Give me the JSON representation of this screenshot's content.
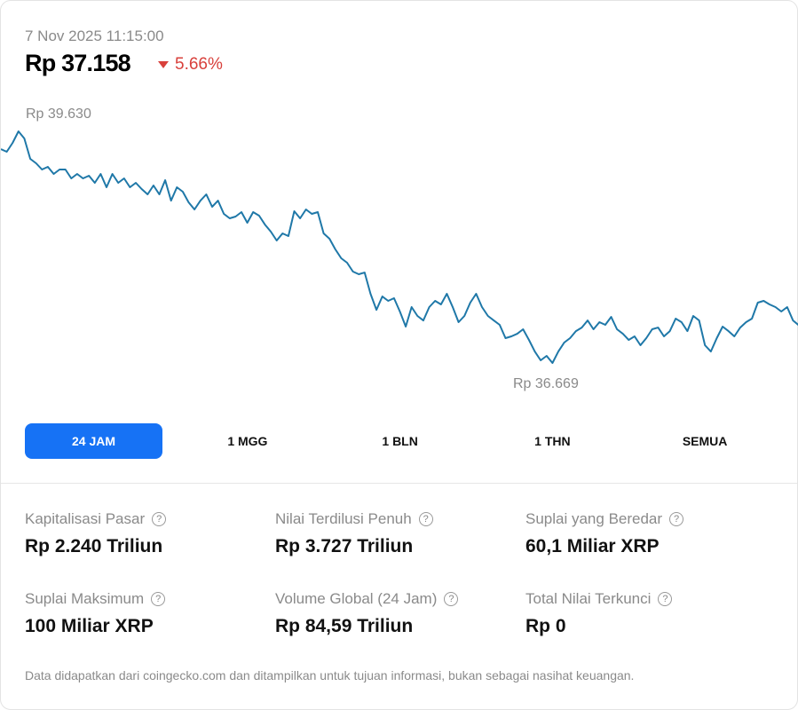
{
  "header": {
    "timestamp": "7 Nov 2025 11:15:00",
    "price": "Rp 37.158",
    "change": "5.66%",
    "change_direction": "down",
    "down_color": "#d8403b"
  },
  "chart_data": {
    "type": "line",
    "title": "",
    "xlabel": "",
    "ylabel": "",
    "line_color": "#1f78a8",
    "max_label": "Rp 39.630",
    "min_label": "Rp 36.669",
    "ylim": [
      36669,
      39630
    ],
    "values": [
      39394,
      39360,
      39472,
      39619,
      39529,
      39270,
      39213,
      39135,
      39168,
      39078,
      39135,
      39135,
      39022,
      39078,
      39022,
      39056,
      38966,
      39078,
      38909,
      39078,
      38966,
      39022,
      38909,
      38966,
      38887,
      38819,
      38932,
      38819,
      38999,
      38740,
      38909,
      38853,
      38718,
      38628,
      38740,
      38819,
      38662,
      38740,
      38572,
      38515,
      38538,
      38594,
      38459,
      38594,
      38549,
      38436,
      38346,
      38234,
      38324,
      38290,
      38605,
      38515,
      38628,
      38572,
      38594,
      38324,
      38256,
      38121,
      38009,
      37952,
      37840,
      37806,
      37828,
      37558,
      37355,
      37524,
      37468,
      37502,
      37333,
      37142,
      37389,
      37277,
      37220,
      37389,
      37468,
      37423,
      37558,
      37389,
      37198,
      37277,
      37446,
      37558,
      37389,
      37277,
      37220,
      37164,
      36995,
      37018,
      37051,
      37108,
      36973,
      36826,
      36714,
      36770,
      36680,
      36826,
      36939,
      36995,
      37085,
      37130,
      37220,
      37108,
      37198,
      37164,
      37265,
      37108,
      37051,
      36973,
      37018,
      36905,
      36995,
      37108,
      37130,
      37018,
      37085,
      37243,
      37198,
      37085,
      37277,
      37220,
      36905,
      36826,
      36995,
      37142,
      37085,
      37018,
      37130,
      37198,
      37243,
      37446,
      37468,
      37423,
      37389,
      37333,
      37389,
      37220,
      37158
    ]
  },
  "tabs": [
    {
      "label": "24 JAM",
      "active": true
    },
    {
      "label": "1 MGG",
      "active": false
    },
    {
      "label": "1 BLN",
      "active": false
    },
    {
      "label": "1 THN",
      "active": false
    },
    {
      "label": "SEMUA",
      "active": false
    }
  ],
  "stats": [
    {
      "label": "Kapitalisasi Pasar",
      "value": "Rp 2.240 Triliun",
      "help": "?"
    },
    {
      "label": "Nilai Terdilusi Penuh",
      "value": "Rp 3.727 Triliun",
      "help": "?"
    },
    {
      "label": "Suplai yang Beredar",
      "value": "60,1 Miliar XRP",
      "help": "?"
    },
    {
      "label": "Suplai Maksimum",
      "value": "100 Miliar XRP",
      "help": "?"
    },
    {
      "label": "Volume Global (24 Jam)",
      "value": "Rp 84,59 Triliun",
      "help": "?"
    },
    {
      "label": "Total Nilai Terkunci",
      "value": "Rp 0",
      "help": "?"
    }
  ],
  "footer": "Data didapatkan dari coingecko.com dan ditampilkan untuk tujuan informasi, bukan sebagai nasihat keuangan."
}
